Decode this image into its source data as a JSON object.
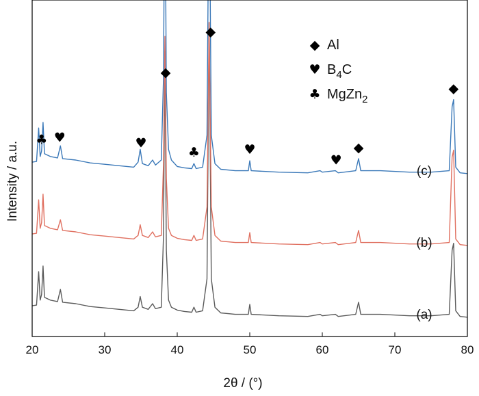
{
  "chart_data": {
    "type": "line",
    "xlabel": "2θ / (°)",
    "ylabel": "Intensity / a.u.",
    "xlim": [
      20,
      80
    ],
    "xticks": [
      20,
      30,
      40,
      50,
      60,
      70,
      80
    ],
    "y_ticks_shown": false,
    "grid": false,
    "legend": {
      "placement": "top-right",
      "entries": [
        {
          "symbol": "diamond",
          "glyph": "◆",
          "text": "Al",
          "text_sub": ""
        },
        {
          "symbol": "heart",
          "glyph": "♥",
          "text": "B",
          "text_sub": "4",
          "text_after": "C"
        },
        {
          "symbol": "club",
          "glyph": "♣",
          "text": "MgZn",
          "text_sub": "2"
        }
      ]
    },
    "series": [
      {
        "name": "(a)",
        "color": "#5a5a5a",
        "offset": 0,
        "points": [
          [
            20.0,
            0.22
          ],
          [
            20.6,
            0.23
          ],
          [
            20.9,
            0.7
          ],
          [
            21.1,
            0.3
          ],
          [
            21.3,
            0.38
          ],
          [
            21.5,
            0.78
          ],
          [
            21.7,
            0.34
          ],
          [
            22.5,
            0.3
          ],
          [
            23.5,
            0.28
          ],
          [
            23.9,
            0.45
          ],
          [
            24.2,
            0.27
          ],
          [
            26,
            0.25
          ],
          [
            28,
            0.21
          ],
          [
            30,
            0.19
          ],
          [
            32,
            0.17
          ],
          [
            34,
            0.15
          ],
          [
            34.6,
            0.2
          ],
          [
            34.9,
            0.35
          ],
          [
            35.2,
            0.2
          ],
          [
            36,
            0.17
          ],
          [
            36.6,
            0.25
          ],
          [
            37,
            0.18
          ],
          [
            37.8,
            0.2
          ],
          [
            38.1,
            1.2
          ],
          [
            38.3,
            3.8
          ],
          [
            38.5,
            1.0
          ],
          [
            38.8,
            0.3
          ],
          [
            39.2,
            0.2
          ],
          [
            40,
            0.16
          ],
          [
            41,
            0.14
          ],
          [
            42,
            0.13
          ],
          [
            42.3,
            0.2
          ],
          [
            42.6,
            0.13
          ],
          [
            43.5,
            0.15
          ],
          [
            44.1,
            0.6
          ],
          [
            44.4,
            4.2
          ],
          [
            44.7,
            0.6
          ],
          [
            45.2,
            0.2
          ],
          [
            46,
            0.12
          ],
          [
            48,
            0.1
          ],
          [
            49.8,
            0.1
          ],
          [
            50.0,
            0.24
          ],
          [
            50.2,
            0.1
          ],
          [
            54,
            0.08
          ],
          [
            58,
            0.07
          ],
          [
            59.7,
            0.1
          ],
          [
            60.0,
            0.08
          ],
          [
            61.8,
            0.1
          ],
          [
            62.2,
            0.07
          ],
          [
            64.6,
            0.1
          ],
          [
            65.0,
            0.27
          ],
          [
            65.3,
            0.1
          ],
          [
            68,
            0.1
          ],
          [
            72,
            0.08
          ],
          [
            75,
            0.08
          ],
          [
            77.5,
            0.1
          ],
          [
            77.9,
            1.0
          ],
          [
            78.1,
            1.1
          ],
          [
            78.4,
            0.15
          ],
          [
            79,
            0.07
          ],
          [
            80,
            0.06
          ]
        ]
      },
      {
        "name": "(b)",
        "color": "#e07060",
        "offset": 1.0,
        "points": [
          [
            20.0,
            0.22
          ],
          [
            20.6,
            0.23
          ],
          [
            20.9,
            0.7
          ],
          [
            21.1,
            0.3
          ],
          [
            21.3,
            0.38
          ],
          [
            21.5,
            0.78
          ],
          [
            21.7,
            0.34
          ],
          [
            22.5,
            0.3
          ],
          [
            23.5,
            0.28
          ],
          [
            23.9,
            0.42
          ],
          [
            24.2,
            0.27
          ],
          [
            26,
            0.25
          ],
          [
            28,
            0.21
          ],
          [
            30,
            0.19
          ],
          [
            32,
            0.17
          ],
          [
            34,
            0.15
          ],
          [
            34.6,
            0.2
          ],
          [
            34.9,
            0.35
          ],
          [
            35.2,
            0.2
          ],
          [
            36,
            0.17
          ],
          [
            36.6,
            0.25
          ],
          [
            37,
            0.18
          ],
          [
            37.8,
            0.2
          ],
          [
            38.1,
            1.2
          ],
          [
            38.3,
            3.0
          ],
          [
            38.5,
            1.0
          ],
          [
            38.8,
            0.3
          ],
          [
            39.2,
            0.2
          ],
          [
            40,
            0.16
          ],
          [
            41,
            0.14
          ],
          [
            42,
            0.13
          ],
          [
            42.3,
            0.2
          ],
          [
            42.6,
            0.13
          ],
          [
            43.5,
            0.15
          ],
          [
            44.1,
            0.6
          ],
          [
            44.4,
            3.2
          ],
          [
            44.7,
            0.6
          ],
          [
            45.2,
            0.2
          ],
          [
            46,
            0.12
          ],
          [
            48,
            0.1
          ],
          [
            49.8,
            0.1
          ],
          [
            50.0,
            0.24
          ],
          [
            50.2,
            0.1
          ],
          [
            54,
            0.08
          ],
          [
            58,
            0.07
          ],
          [
            59.7,
            0.1
          ],
          [
            60.0,
            0.08
          ],
          [
            61.8,
            0.1
          ],
          [
            62.2,
            0.07
          ],
          [
            64.6,
            0.1
          ],
          [
            65.0,
            0.27
          ],
          [
            65.3,
            0.1
          ],
          [
            68,
            0.1
          ],
          [
            72,
            0.08
          ],
          [
            75,
            0.08
          ],
          [
            77.5,
            0.1
          ],
          [
            77.9,
            1.3
          ],
          [
            78.1,
            1.4
          ],
          [
            78.4,
            0.15
          ],
          [
            79,
            0.07
          ],
          [
            80,
            0.06
          ]
        ]
      },
      {
        "name": "(c)",
        "color": "#3a78b8",
        "offset": 2.0,
        "points": [
          [
            20.0,
            0.22
          ],
          [
            20.6,
            0.23
          ],
          [
            20.9,
            0.7
          ],
          [
            21.1,
            0.3
          ],
          [
            21.3,
            0.38
          ],
          [
            21.5,
            0.78
          ],
          [
            21.7,
            0.34
          ],
          [
            22.5,
            0.3
          ],
          [
            23.5,
            0.28
          ],
          [
            23.9,
            0.45
          ],
          [
            24.2,
            0.27
          ],
          [
            26,
            0.25
          ],
          [
            28,
            0.21
          ],
          [
            30,
            0.19
          ],
          [
            32,
            0.17
          ],
          [
            34,
            0.15
          ],
          [
            34.6,
            0.22
          ],
          [
            34.9,
            0.4
          ],
          [
            35.2,
            0.2
          ],
          [
            36,
            0.17
          ],
          [
            36.6,
            0.25
          ],
          [
            37,
            0.18
          ],
          [
            37.8,
            0.25
          ],
          [
            38.1,
            1.4
          ],
          [
            38.3,
            4.5
          ],
          [
            38.5,
            1.2
          ],
          [
            38.8,
            0.4
          ],
          [
            39.2,
            0.25
          ],
          [
            40,
            0.16
          ],
          [
            41,
            0.14
          ],
          [
            42,
            0.13
          ],
          [
            42.3,
            0.2
          ],
          [
            42.6,
            0.13
          ],
          [
            43.5,
            0.15
          ],
          [
            44.1,
            0.6
          ],
          [
            44.4,
            4.5
          ],
          [
            44.7,
            0.6
          ],
          [
            45.2,
            0.2
          ],
          [
            46,
            0.12
          ],
          [
            48,
            0.1
          ],
          [
            49.8,
            0.1
          ],
          [
            50.0,
            0.24
          ],
          [
            50.2,
            0.1
          ],
          [
            54,
            0.08
          ],
          [
            58,
            0.07
          ],
          [
            59.7,
            0.1
          ],
          [
            60.0,
            0.08
          ],
          [
            61.8,
            0.1
          ],
          [
            62.2,
            0.07
          ],
          [
            64.6,
            0.1
          ],
          [
            65.0,
            0.27
          ],
          [
            65.3,
            0.1
          ],
          [
            68,
            0.1
          ],
          [
            72,
            0.08
          ],
          [
            75,
            0.08
          ],
          [
            77.5,
            0.1
          ],
          [
            77.9,
            1.0
          ],
          [
            78.1,
            1.1
          ],
          [
            78.4,
            0.15
          ],
          [
            79,
            0.07
          ],
          [
            80,
            0.06
          ]
        ]
      }
    ],
    "peak_markers": [
      {
        "phase": "MgZn2",
        "glyph": "♣",
        "x": 21.3
      },
      {
        "phase": "B4C",
        "glyph": "♥",
        "x": 23.8
      },
      {
        "phase": "B4C",
        "glyph": "♥",
        "x": 35.0
      },
      {
        "phase": "Al",
        "glyph": "◆",
        "x": 38.4
      },
      {
        "phase": "MgZn2",
        "glyph": "♣",
        "x": 42.3
      },
      {
        "phase": "Al",
        "glyph": "◆",
        "x": 44.6
      },
      {
        "phase": "B4C",
        "glyph": "♥",
        "x": 50.0
      },
      {
        "phase": "B4C",
        "glyph": "♥",
        "x": 61.9
      },
      {
        "phase": "Al",
        "glyph": "◆",
        "x": 65.0
      },
      {
        "phase": "Al",
        "glyph": "◆",
        "x": 78.1
      }
    ]
  }
}
